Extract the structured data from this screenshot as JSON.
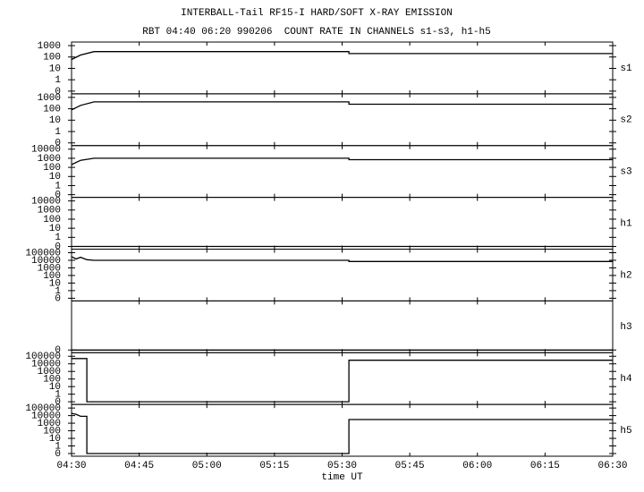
{
  "chart_data": [
    {
      "type": "line",
      "title": "INTERBALL-Tail RF15-I HARD/SOFT X-RAY EMISSION",
      "subtitle": "RBT 04:40 06:20 990206  COUNT RATE IN CHANNELS s1-s3, h1-h5",
      "label": "s1",
      "log": true,
      "color": "#000000",
      "ylim": [
        0,
        1000
      ],
      "yticks": [
        0,
        1,
        10,
        100,
        1000
      ],
      "x": [
        270,
        272,
        275,
        331.5,
        331.5,
        390
      ],
      "values": [
        60,
        150,
        300,
        300,
        200,
        200
      ]
    },
    {
      "type": "line",
      "label": "s2",
      "log": true,
      "color": "#000000",
      "ylim": [
        0,
        1000
      ],
      "yticks": [
        0,
        1,
        10,
        100,
        1000
      ],
      "x": [
        270,
        272,
        275,
        331.5,
        331.5,
        390
      ],
      "values": [
        80,
        200,
        400,
        400,
        250,
        250
      ]
    },
    {
      "type": "line",
      "label": "s3",
      "log": true,
      "color": "#000000",
      "ylim": [
        0,
        10000
      ],
      "yticks": [
        0,
        1,
        10,
        100,
        1000,
        10000
      ],
      "x": [
        270,
        272,
        275,
        331.5,
        331.5,
        390
      ],
      "values": [
        200,
        600,
        1000,
        1000,
        700,
        700
      ]
    },
    {
      "type": "line",
      "label": "h1",
      "log": true,
      "color": "#000000",
      "ylim": [
        0,
        10000
      ],
      "yticks": [
        0,
        1,
        10,
        100,
        1000,
        10000
      ],
      "x": [
        270,
        390
      ],
      "values": [
        0,
        0
      ]
    },
    {
      "type": "line",
      "label": "h2",
      "log": true,
      "color": "#000000",
      "ylim": [
        0,
        100000
      ],
      "yticks": [
        0,
        1,
        10,
        100,
        1000,
        10000,
        100000
      ],
      "x": [
        270,
        271,
        272,
        273.4,
        275,
        331.5,
        331.5,
        390
      ],
      "values": [
        30000,
        15000,
        25000,
        12000,
        10000,
        10000,
        7000,
        7000
      ]
    },
    {
      "type": "line",
      "label": "h3",
      "log": true,
      "color": "#000000",
      "ylim": [
        0,
        1
      ],
      "yticks": [
        0
      ],
      "x": [
        270,
        390
      ],
      "values": [
        0,
        0
      ]
    },
    {
      "type": "line",
      "label": "h4",
      "log": true,
      "color": "#000000",
      "ylim": [
        0,
        100000
      ],
      "yticks": [
        0,
        1,
        10,
        100,
        1000,
        10000,
        100000
      ],
      "x": [
        270,
        273.4,
        273.4,
        331.5,
        331.5,
        390
      ],
      "values": [
        50000,
        50000,
        0,
        0,
        30000,
        30000
      ]
    },
    {
      "type": "line",
      "label": "h5",
      "log": true,
      "color": "#000000",
      "ylim": [
        0,
        100000
      ],
      "yticks": [
        0,
        1,
        10,
        100,
        1000,
        10000,
        100000
      ],
      "x": [
        270,
        271,
        272,
        273.4,
        273.4,
        331.5,
        331.5,
        390
      ],
      "values": [
        20000,
        15000,
        8000,
        8000,
        0,
        0,
        3000,
        3000
      ],
      "xlabel": "time UT",
      "xlim": [
        270,
        390
      ],
      "xticks": [
        {
          "value": 270,
          "label": "04:30"
        },
        {
          "value": 285,
          "label": "04:45"
        },
        {
          "value": 300,
          "label": "05:00"
        },
        {
          "value": 315,
          "label": "05:15"
        },
        {
          "value": 330,
          "label": "05:30"
        },
        {
          "value": 345,
          "label": "05:45"
        },
        {
          "value": 360,
          "label": "06:00"
        },
        {
          "value": 375,
          "label": "06:15"
        },
        {
          "value": 390,
          "label": "06:30"
        }
      ]
    }
  ]
}
